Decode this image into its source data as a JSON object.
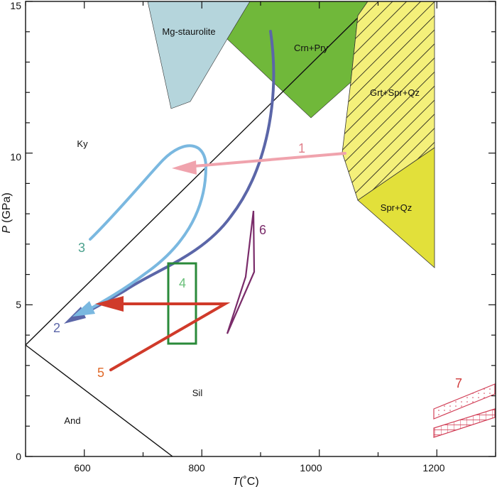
{
  "axes": {
    "x_title_italic": "T",
    "x_title_rest": "(˚C)",
    "y_title_italic": "P",
    "y_title_rest": "(GPa)",
    "x_ticks": [
      "600",
      "800",
      "1000",
      "1200"
    ],
    "y_ticks": [
      "0",
      "5",
      "10",
      "15"
    ],
    "x_range_c": [
      500,
      1300
    ],
    "y_range_gpa": [
      0,
      15
    ]
  },
  "fields": {
    "ky": "Ky",
    "sil": "Sil",
    "and": "And",
    "mg_staurolite": "Mg-staurolite",
    "crn_pry": "Crn+Pry",
    "grt_spr_qz": "Grt+Spr+Qz",
    "spr_qz": "Spr+Qz"
  },
  "colors": {
    "mg_staurolite": "#b5d5dc",
    "crn_pry": "#70b83a",
    "spr_qz": "#e2e03a",
    "grt_spr_qz_bg": "#f4f07a",
    "path1": "#f0a3ad",
    "path2": "#5b66a8",
    "path3": "#7ab8e0",
    "box4": "#2a8a3a",
    "path5": "#d03a2a",
    "path6": "#7a2c6a",
    "path7": "#d24058"
  },
  "paths": [
    {
      "id": "1",
      "label": "1",
      "label_color": "#e07f8a"
    },
    {
      "id": "2",
      "label": "2",
      "label_color": "#5b66a8"
    },
    {
      "id": "3",
      "label": "3",
      "label_color": "#4aa08c"
    },
    {
      "id": "4",
      "label": "4",
      "label_color": "#6ac07a"
    },
    {
      "id": "5",
      "label": "5",
      "label_color": "#e06a2a"
    },
    {
      "id": "6",
      "label": "6",
      "label_color": "#7a2c6a"
    },
    {
      "id": "7",
      "label": "7",
      "label_color": "#d03a3a"
    }
  ]
}
